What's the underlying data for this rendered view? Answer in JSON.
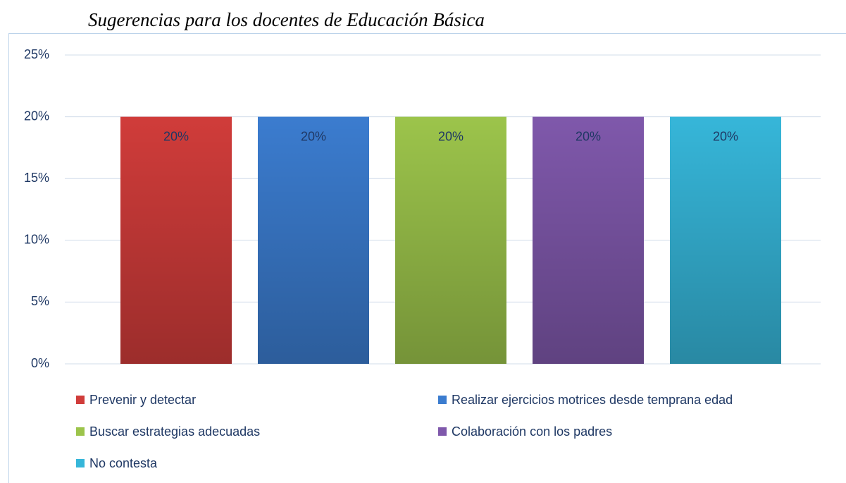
{
  "chart_data": {
    "type": "bar",
    "title": "Sugerencias para los docentes de Educación Básica",
    "categories": [
      null
    ],
    "series": [
      {
        "name": "Prevenir y detectar",
        "color": "#d03c3a",
        "values": [
          20
        ],
        "value_labels": [
          "20%"
        ]
      },
      {
        "name": "Realizar ejercicios motrices desde temprana edad",
        "color": "#3b7ccf",
        "values": [
          20
        ],
        "value_labels": [
          "20%"
        ]
      },
      {
        "name": "Buscar estrategias adecuadas",
        "color": "#9cc44b",
        "values": [
          20
        ],
        "value_labels": [
          "20%"
        ]
      },
      {
        "name": "Colaboración con los padres",
        "color": "#7f58ab",
        "values": [
          20
        ],
        "value_labels": [
          "20%"
        ]
      },
      {
        "name": "No contesta",
        "color": "#36b6d9",
        "values": [
          20
        ],
        "value_labels": [
          "20%"
        ]
      }
    ],
    "ylim": [
      0,
      25
    ],
    "yticks": [
      {
        "value": 0,
        "label": "0%"
      },
      {
        "value": 5,
        "label": "5%"
      },
      {
        "value": 10,
        "label": "10%"
      },
      {
        "value": 15,
        "label": "15%"
      },
      {
        "value": 20,
        "label": "20%"
      },
      {
        "value": 25,
        "label": "25%"
      }
    ],
    "grid": true,
    "legend": "bottom"
  }
}
